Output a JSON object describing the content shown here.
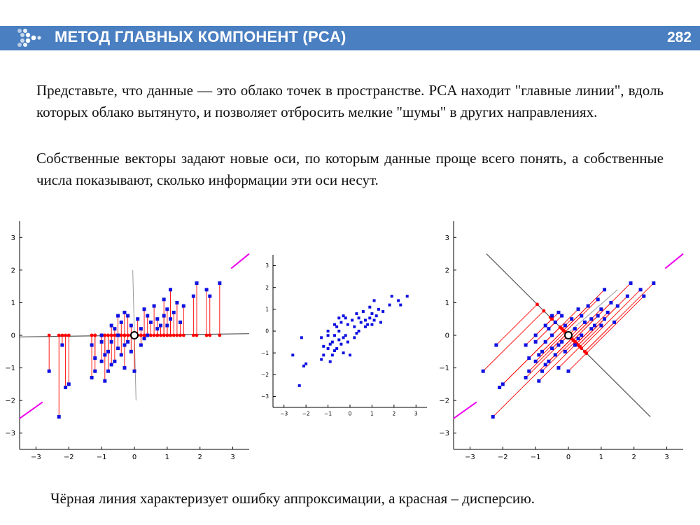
{
  "header": {
    "title": "МЕТОД ГЛАВНЫХ КОМПОНЕНТ (PCA)",
    "page_number": "282"
  },
  "paragraphs": [
    "Представьте, что данные — это облако точек в пространстве. PCA находит \"главные линии\", вдоль которых облако вытянуто, и позволяет отбросить мелкие \"шумы\" в других направлениях.",
    "Собственные векторы задают новые оси, по которым данные проще всего понять, а собственные числа показывают, сколько информации эти оси несут."
  ],
  "caption": "Чёрная линия характеризует ошибку аппроксимации, а красная – дисперсию.",
  "chart_data": [
    {
      "type": "scatter",
      "panel": "left",
      "title": "",
      "xlabel": "",
      "ylabel": "",
      "xlim": [
        -3.5,
        3.5
      ],
      "ylim": [
        -3.5,
        3.5
      ],
      "xticks": [
        -3,
        -2,
        -1,
        0,
        1,
        2,
        3
      ],
      "yticks": [
        -3,
        -2,
        -1,
        0,
        1,
        2,
        3
      ],
      "projection": "onto horizontal axis (y = 0)",
      "points_color": "#1010e0",
      "projection_color": "#ff0000",
      "axis_color": "#555555",
      "magenta_color": "#ee00ee",
      "points": [
        [
          -2.6,
          -1.1
        ],
        [
          -2.3,
          -2.5
        ],
        [
          -2.2,
          -0.3
        ],
        [
          -2.1,
          -1.6
        ],
        [
          -2.0,
          -1.5
        ],
        [
          -1.3,
          -0.3
        ],
        [
          -1.3,
          -1.3
        ],
        [
          -1.2,
          -1.1
        ],
        [
          -1.2,
          -0.7
        ],
        [
          -1.0,
          0.0
        ],
        [
          -1.0,
          -0.2
        ],
        [
          -1.0,
          -0.8
        ],
        [
          -0.9,
          -0.6
        ],
        [
          -0.9,
          -1.4
        ],
        [
          -0.8,
          -0.5
        ],
        [
          -0.8,
          -1.1
        ],
        [
          -0.7,
          0.3
        ],
        [
          -0.7,
          -0.2
        ],
        [
          -0.7,
          -0.9
        ],
        [
          -0.6,
          0.2
        ],
        [
          -0.6,
          -0.8
        ],
        [
          -0.5,
          0.6
        ],
        [
          -0.5,
          0.0
        ],
        [
          -0.5,
          -0.4
        ],
        [
          -0.4,
          0.4
        ],
        [
          -0.4,
          -0.6
        ],
        [
          -0.3,
          0.7
        ],
        [
          -0.3,
          -0.3
        ],
        [
          -0.3,
          -1.0
        ],
        [
          -0.2,
          0.6
        ],
        [
          -0.2,
          -0.2
        ],
        [
          -0.1,
          0.3
        ],
        [
          -0.1,
          -0.5
        ],
        [
          0.0,
          -1.1
        ],
        [
          0.1,
          0.5
        ],
        [
          0.2,
          0.2
        ],
        [
          0.2,
          -0.3
        ],
        [
          0.3,
          0.8
        ],
        [
          0.3,
          -0.1
        ],
        [
          0.4,
          0.0
        ],
        [
          0.4,
          0.6
        ],
        [
          0.5,
          0.4
        ],
        [
          0.6,
          0.9
        ],
        [
          0.7,
          0.2
        ],
        [
          0.7,
          0.5
        ],
        [
          0.8,
          0.3
        ],
        [
          0.9,
          1.1
        ],
        [
          0.9,
          0.6
        ],
        [
          1.0,
          0.8
        ],
        [
          1.0,
          0.3
        ],
        [
          1.1,
          1.4
        ],
        [
          1.1,
          0.5
        ],
        [
          1.2,
          0.7
        ],
        [
          1.3,
          1.0
        ],
        [
          1.4,
          0.4
        ],
        [
          1.5,
          0.9
        ],
        [
          1.8,
          1.2
        ],
        [
          1.9,
          1.6
        ],
        [
          2.2,
          1.4
        ],
        [
          2.3,
          1.2
        ],
        [
          2.6,
          1.6
        ]
      ]
    },
    {
      "type": "scatter",
      "panel": "middle",
      "title": "",
      "xlabel": "",
      "ylabel": "",
      "xlim": [
        -3.5,
        3.5
      ],
      "ylim": [
        -3.5,
        3.5
      ],
      "xticks": [
        -3,
        -2,
        -1,
        0,
        1,
        2,
        3
      ],
      "yticks": [
        -3,
        -2,
        -1,
        0,
        1,
        2,
        3
      ],
      "points_color": "#1010e0",
      "points": [
        [
          -2.6,
          -1.1
        ],
        [
          -2.3,
          -2.5
        ],
        [
          -2.2,
          -0.3
        ],
        [
          -2.1,
          -1.6
        ],
        [
          -2.0,
          -1.5
        ],
        [
          -1.3,
          -0.3
        ],
        [
          -1.3,
          -1.3
        ],
        [
          -1.2,
          -1.1
        ],
        [
          -1.2,
          -0.7
        ],
        [
          -1.0,
          0.0
        ],
        [
          -1.0,
          -0.2
        ],
        [
          -1.0,
          -0.8
        ],
        [
          -0.9,
          -0.6
        ],
        [
          -0.9,
          -1.4
        ],
        [
          -0.8,
          -0.5
        ],
        [
          -0.8,
          -1.1
        ],
        [
          -0.7,
          0.3
        ],
        [
          -0.7,
          -0.2
        ],
        [
          -0.7,
          -0.9
        ],
        [
          -0.6,
          0.2
        ],
        [
          -0.6,
          -0.8
        ],
        [
          -0.5,
          0.6
        ],
        [
          -0.5,
          0.0
        ],
        [
          -0.5,
          -0.4
        ],
        [
          -0.4,
          0.4
        ],
        [
          -0.4,
          -0.6
        ],
        [
          -0.3,
          0.7
        ],
        [
          -0.3,
          -0.3
        ],
        [
          -0.3,
          -1.0
        ],
        [
          -0.2,
          0.6
        ],
        [
          -0.2,
          -0.2
        ],
        [
          -0.1,
          0.3
        ],
        [
          -0.1,
          -0.5
        ],
        [
          0.0,
          -1.1
        ],
        [
          0.1,
          0.5
        ],
        [
          0.2,
          0.2
        ],
        [
          0.2,
          -0.3
        ],
        [
          0.3,
          0.8
        ],
        [
          0.3,
          -0.1
        ],
        [
          0.4,
          0.0
        ],
        [
          0.4,
          0.6
        ],
        [
          0.5,
          0.4
        ],
        [
          0.6,
          0.9
        ],
        [
          0.7,
          0.2
        ],
        [
          0.7,
          0.5
        ],
        [
          0.8,
          0.3
        ],
        [
          0.9,
          1.1
        ],
        [
          0.9,
          0.6
        ],
        [
          1.0,
          0.8
        ],
        [
          1.0,
          0.3
        ],
        [
          1.1,
          1.4
        ],
        [
          1.1,
          0.5
        ],
        [
          1.2,
          0.7
        ],
        [
          1.3,
          1.0
        ],
        [
          1.4,
          0.4
        ],
        [
          1.5,
          0.9
        ],
        [
          1.8,
          1.2
        ],
        [
          1.9,
          1.6
        ],
        [
          2.2,
          1.4
        ],
        [
          2.3,
          1.2
        ],
        [
          2.6,
          1.6
        ]
      ]
    },
    {
      "type": "scatter",
      "panel": "right",
      "title": "",
      "xlabel": "",
      "ylabel": "",
      "xlim": [
        -3.5,
        3.5
      ],
      "ylim": [
        -3.5,
        3.5
      ],
      "xticks": [
        -3,
        -2,
        -1,
        0,
        1,
        2,
        3
      ],
      "yticks": [
        -3,
        -2,
        -1,
        0,
        1,
        2,
        3
      ],
      "projection": "onto diagonal line y = -x",
      "points_color": "#1010e0",
      "projection_color": "#ff0000",
      "axis_color": "#555555",
      "magenta_color": "#ee00ee",
      "points": [
        [
          -2.6,
          -1.1
        ],
        [
          -2.3,
          -2.5
        ],
        [
          -2.2,
          -0.3
        ],
        [
          -2.1,
          -1.6
        ],
        [
          -2.0,
          -1.5
        ],
        [
          -1.3,
          -0.3
        ],
        [
          -1.3,
          -1.3
        ],
        [
          -1.2,
          -1.1
        ],
        [
          -1.2,
          -0.7
        ],
        [
          -1.0,
          0.0
        ],
        [
          -1.0,
          -0.2
        ],
        [
          -1.0,
          -0.8
        ],
        [
          -0.9,
          -0.6
        ],
        [
          -0.9,
          -1.4
        ],
        [
          -0.8,
          -0.5
        ],
        [
          -0.8,
          -1.1
        ],
        [
          -0.7,
          0.3
        ],
        [
          -0.7,
          -0.2
        ],
        [
          -0.7,
          -0.9
        ],
        [
          -0.6,
          0.2
        ],
        [
          -0.6,
          -0.8
        ],
        [
          -0.5,
          0.6
        ],
        [
          -0.5,
          0.0
        ],
        [
          -0.5,
          -0.4
        ],
        [
          -0.4,
          0.4
        ],
        [
          -0.4,
          -0.6
        ],
        [
          -0.3,
          0.7
        ],
        [
          -0.3,
          -0.3
        ],
        [
          -0.3,
          -1.0
        ],
        [
          -0.2,
          0.6
        ],
        [
          -0.2,
          -0.2
        ],
        [
          -0.1,
          0.3
        ],
        [
          -0.1,
          -0.5
        ],
        [
          0.0,
          -1.1
        ],
        [
          0.1,
          0.5
        ],
        [
          0.2,
          0.2
        ],
        [
          0.2,
          -0.3
        ],
        [
          0.3,
          0.8
        ],
        [
          0.3,
          -0.1
        ],
        [
          0.4,
          0.0
        ],
        [
          0.4,
          0.6
        ],
        [
          0.5,
          0.4
        ],
        [
          0.6,
          0.9
        ],
        [
          0.7,
          0.2
        ],
        [
          0.7,
          0.5
        ],
        [
          0.8,
          0.3
        ],
        [
          0.9,
          1.1
        ],
        [
          0.9,
          0.6
        ],
        [
          1.0,
          0.8
        ],
        [
          1.0,
          0.3
        ],
        [
          1.1,
          1.4
        ],
        [
          1.1,
          0.5
        ],
        [
          1.2,
          0.7
        ],
        [
          1.3,
          1.0
        ],
        [
          1.4,
          0.4
        ],
        [
          1.5,
          0.9
        ],
        [
          1.8,
          1.2
        ],
        [
          1.9,
          1.6
        ],
        [
          2.2,
          1.4
        ],
        [
          2.3,
          1.2
        ],
        [
          2.6,
          1.6
        ]
      ]
    }
  ]
}
